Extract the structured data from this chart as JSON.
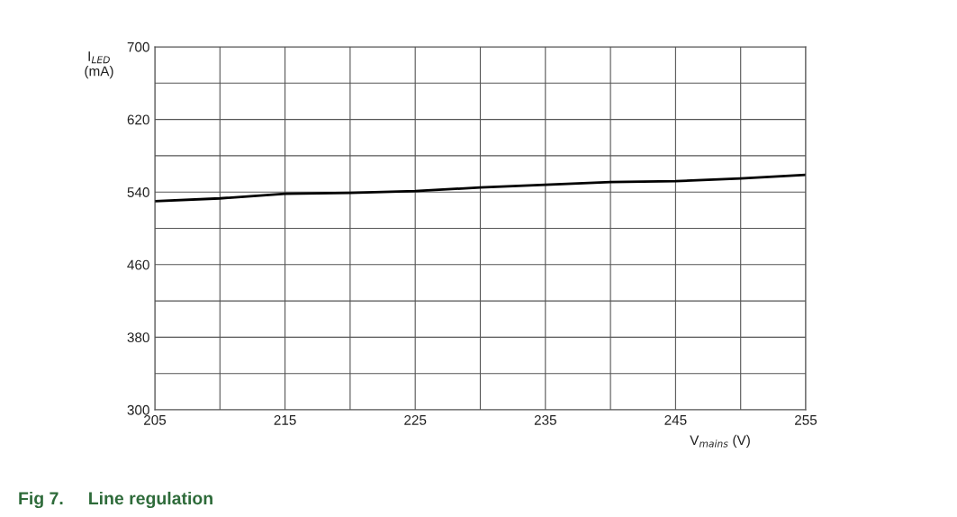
{
  "chart_data": {
    "type": "line",
    "x": [
      205,
      210,
      215,
      220,
      225,
      230,
      235,
      240,
      245,
      250,
      255
    ],
    "series": [
      {
        "color": "#000000",
        "values": [
          530,
          533,
          538,
          539,
          541,
          545,
          548,
          551,
          552,
          555,
          559
        ]
      }
    ],
    "xlim": [
      205,
      255
    ],
    "xticks": [
      205,
      {
        "value": 210,
        "label": null
      },
      215,
      {
        "value": 220,
        "label": null
      },
      225,
      {
        "value": 230,
        "label": null
      },
      235,
      {
        "value": 240,
        "label": null
      },
      245,
      {
        "value": 250,
        "label": null
      },
      255
    ],
    "ylim": [
      300,
      700
    ],
    "yticks": [
      300,
      {
        "value": 340,
        "label": null
      },
      380,
      {
        "value": 420,
        "label": null
      },
      460,
      {
        "value": 500,
        "label": null
      },
      540,
      {
        "value": 580,
        "label": null
      },
      620,
      {
        "value": 660,
        "label": null
      },
      700
    ],
    "ylabel": "I$_{LED}$\n(mA)",
    "xlabel": "V$_{mains}$ (V)",
    "grid": true,
    "marker": "none",
    "line_style": "solid",
    "annotations": [
      "Fig 7.     Line regulation"
    ]
  }
}
